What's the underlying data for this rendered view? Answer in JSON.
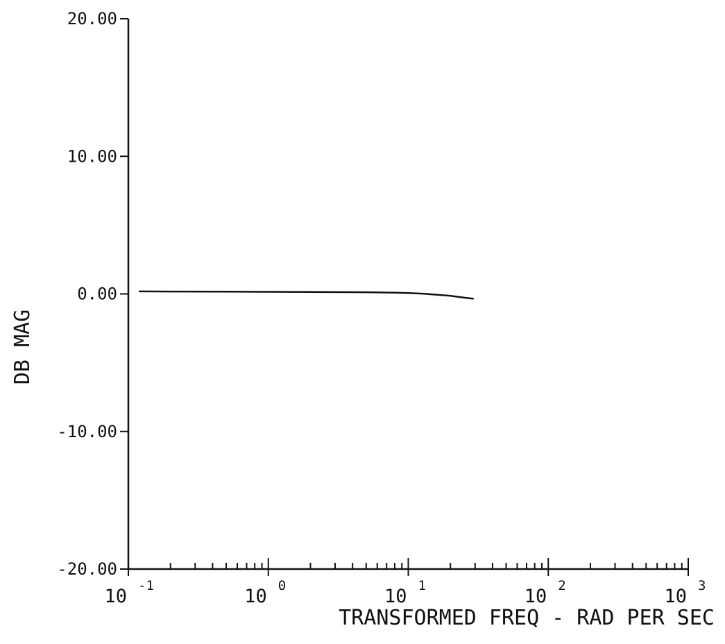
{
  "chart_data": {
    "type": "line",
    "xlabel": "TRANSFORMED FREQ - RAD PER SEC",
    "ylabel": "DB MAG",
    "xscale": "log",
    "xlim": [
      0.1,
      1000
    ],
    "ylim": [
      -20,
      20
    ],
    "grid": false,
    "y_ticks": [
      {
        "value": 20,
        "label": "20.00"
      },
      {
        "value": 10,
        "label": "10.00"
      },
      {
        "value": 0,
        "label": "0.00"
      },
      {
        "value": -10,
        "label": "-10.00"
      },
      {
        "value": -20,
        "label": "-20.00"
      }
    ],
    "x_ticks": [
      {
        "value": 0.1,
        "base": "10",
        "exp": "-1"
      },
      {
        "value": 1,
        "base": "10",
        "exp": "0"
      },
      {
        "value": 10,
        "base": "10",
        "exp": "1"
      },
      {
        "value": 100,
        "base": "10",
        "exp": "2"
      },
      {
        "value": 1000,
        "base": "10",
        "exp": "3"
      }
    ],
    "series": [
      {
        "x": [
          0.12,
          0.2,
          0.5,
          1,
          2,
          5,
          8,
          10,
          13,
          16,
          20,
          25,
          29
        ],
        "y": [
          0.18,
          0.17,
          0.16,
          0.15,
          0.14,
          0.12,
          0.09,
          0.06,
          0.01,
          -0.06,
          -0.14,
          -0.27,
          -0.35
        ]
      }
    ],
    "color": "#111111"
  }
}
